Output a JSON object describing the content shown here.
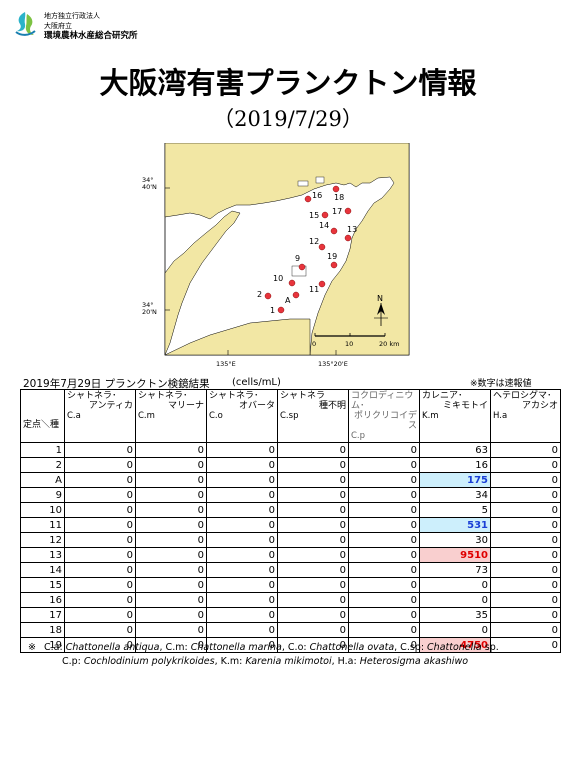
{
  "header": {
    "org_line1": "地方独立行政法人",
    "org_line2": "大阪府立",
    "org_line3": "環境農林水産総合研究所",
    "title": "大阪湾有害プランクトン情報",
    "date": "（2019/7/29）"
  },
  "map": {
    "lat_top": "34°\n40'N",
    "lat_bottom": "34°\n20'N",
    "lon_left": "135°E",
    "lon_right": "135°20'E",
    "north_label": "N",
    "scale_labels": [
      "0",
      "10",
      "20 km"
    ],
    "stations": [
      "1",
      "2",
      "A",
      "10",
      "11",
      "9",
      "19",
      "12",
      "13",
      "14",
      "15",
      "16",
      "17",
      "18"
    ],
    "colors": {
      "land": "#f2e7a4",
      "sea": "#ffffff",
      "station": "#e8343c"
    }
  },
  "results": {
    "title": "2019年7月29日  プランクトン検鏡結果",
    "unit": "(cells/mL)",
    "note": "※数字は速報値",
    "corner_label": "定点＼種",
    "columns": [
      {
        "l1": "シャトネラ･",
        "l2": "アンティカ",
        "l3": "C.a"
      },
      {
        "l1": "シャトネラ･",
        "l2": "マリーナ",
        "l3": "C.m"
      },
      {
        "l1": "シャトネラ･",
        "l2": "オバータ",
        "l3": "C.o"
      },
      {
        "l1": "シャトネラ",
        "l2": "種不明",
        "l3": "C.sp"
      },
      {
        "l1": "コクロディニウム･",
        "l2": "ポリクリコイデス",
        "l3": "C.p"
      },
      {
        "l1": "カレニア･",
        "l2": "ミキモトイ",
        "l3": "K.m"
      },
      {
        "l1": "ヘテロシグマ･",
        "l2": "アカシオ",
        "l3": "H.a"
      }
    ],
    "rows": [
      {
        "station": "1",
        "values": [
          "0",
          "0",
          "0",
          "0",
          "0",
          "63",
          "0"
        ]
      },
      {
        "station": "2",
        "values": [
          "0",
          "0",
          "0",
          "0",
          "0",
          "16",
          "0"
        ]
      },
      {
        "station": "A",
        "values": [
          "0",
          "0",
          "0",
          "0",
          "0",
          "175",
          "0"
        ]
      },
      {
        "station": "9",
        "values": [
          "0",
          "0",
          "0",
          "0",
          "0",
          "34",
          "0"
        ]
      },
      {
        "station": "10",
        "values": [
          "0",
          "0",
          "0",
          "0",
          "0",
          "5",
          "0"
        ]
      },
      {
        "station": "11",
        "values": [
          "0",
          "0",
          "0",
          "0",
          "0",
          "531",
          "0"
        ]
      },
      {
        "station": "12",
        "values": [
          "0",
          "0",
          "0",
          "0",
          "0",
          "30",
          "0"
        ]
      },
      {
        "station": "13",
        "values": [
          "0",
          "0",
          "0",
          "0",
          "0",
          "9510",
          "0"
        ]
      },
      {
        "station": "14",
        "values": [
          "0",
          "0",
          "0",
          "0",
          "0",
          "73",
          "0"
        ]
      },
      {
        "station": "15",
        "values": [
          "0",
          "0",
          "0",
          "0",
          "0",
          "0",
          "0"
        ]
      },
      {
        "station": "16",
        "values": [
          "0",
          "0",
          "0",
          "0",
          "0",
          "0",
          "0"
        ]
      },
      {
        "station": "17",
        "values": [
          "0",
          "0",
          "0",
          "0",
          "0",
          "35",
          "0"
        ]
      },
      {
        "station": "18",
        "values": [
          "0",
          "0",
          "0",
          "0",
          "0",
          "0",
          "0"
        ]
      },
      {
        "station": "19",
        "values": [
          "0",
          "0",
          "0",
          "0",
          "0",
          "4750",
          "0"
        ]
      }
    ],
    "highlight_colors": {
      "blue_bg": "#cdeffc",
      "blue_text": "#1a3fd6",
      "red_bg": "#f9cfcf",
      "red_text": "#e00000"
    }
  },
  "footnote": {
    "mark": "※",
    "line1": [
      {
        "abbr": "C.a: ",
        "name": "Chattonella antiqua"
      },
      {
        "abbr": ", C.m: ",
        "name": "Chattonella marina"
      },
      {
        "abbr": ", C.o: ",
        "name": "Chattonella ovata"
      },
      {
        "abbr": ", C.sp: ",
        "name": "Chattonella"
      },
      {
        "abbr": " sp.",
        "name": ""
      }
    ],
    "line2": [
      {
        "abbr": "C.p: ",
        "name": "Cochlodinium polykrikoides"
      },
      {
        "abbr": ",  K.m: ",
        "name": "Karenia mikimotoi"
      },
      {
        "abbr": ",  H.a: ",
        "name": "Heterosigma akashiwo"
      }
    ]
  }
}
